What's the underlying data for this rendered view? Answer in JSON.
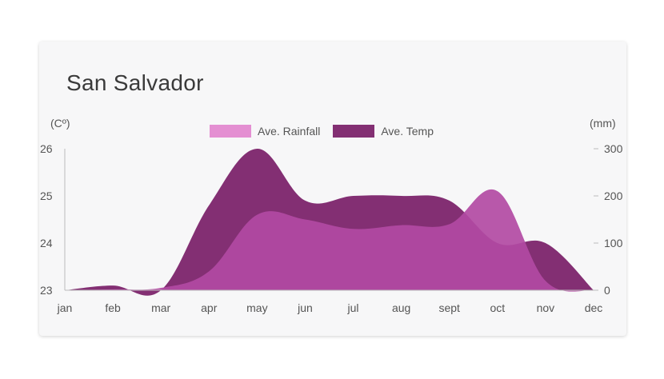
{
  "title": "San Salvador",
  "colors": {
    "rainfall": "#b24aa3",
    "rainfall_legend": "#e48fd2",
    "temp": "#832f73",
    "oct_peak": "#e08ccf"
  },
  "chart_data": {
    "type": "area",
    "title": "San Salvador",
    "categories": [
      "jan",
      "feb",
      "mar",
      "apr",
      "may",
      "jun",
      "jul",
      "aug",
      "sept",
      "oct",
      "nov",
      "dec"
    ],
    "left_axis": {
      "unit_label": "(Cº)",
      "range": [
        23,
        26
      ],
      "ticks": [
        "23",
        "24",
        "25",
        "26"
      ]
    },
    "right_axis": {
      "unit_label": "(mm)",
      "range": [
        0,
        300
      ],
      "ticks": [
        "0",
        "100",
        "200",
        "300"
      ]
    },
    "series": [
      {
        "name": "Ave. Rainfall",
        "axis": "right",
        "values": [
          0,
          2,
          5,
          40,
          160,
          150,
          130,
          138,
          140,
          210,
          20,
          0
        ]
      },
      {
        "name": "Ave. Temp",
        "axis": "left",
        "values": [
          23.0,
          23.1,
          23.0,
          24.8,
          26.0,
          24.9,
          25.0,
          25.0,
          24.9,
          24.0,
          24.0,
          23.0
        ]
      }
    ],
    "legend_position": "top-center",
    "grid": false
  }
}
